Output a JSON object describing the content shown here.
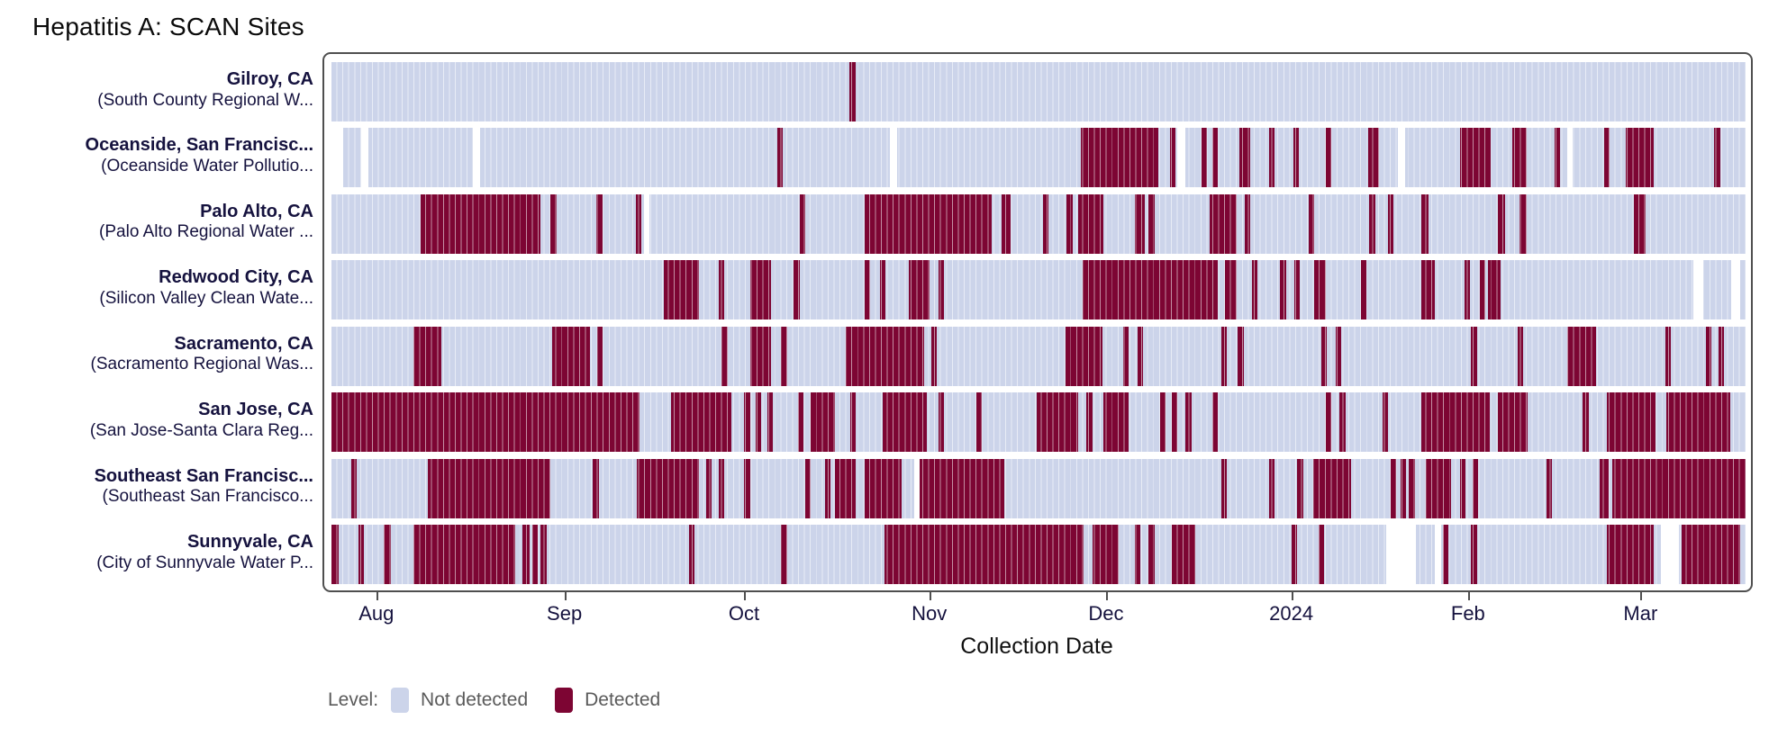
{
  "title": "Hepatitis A: SCAN Sites",
  "colors": {
    "not_detected": "#ccd4ea",
    "detected": "#7d0533",
    "gap": "#ffffff",
    "frame": "#4f4f4f",
    "label_text": "#15123e",
    "legend_text": "#5a5a5a"
  },
  "legend": {
    "title": "Level:",
    "items": [
      {
        "label": "Not detected",
        "color_key": "not_detected"
      },
      {
        "label": "Detected",
        "color_key": "detected"
      }
    ]
  },
  "chart_data": {
    "type": "heatmap",
    "title": "Hepatitis A: SCAN Sites",
    "xlabel": "Collection Date",
    "x_range_approx": [
      "2023-07-23",
      "2024-03-18"
    ],
    "x_ticks": [
      {
        "label": "Aug",
        "pos": 0.033
      },
      {
        "label": "Sep",
        "pos": 0.166
      },
      {
        "label": "Oct",
        "pos": 0.293
      },
      {
        "label": "Nov",
        "pos": 0.424
      },
      {
        "label": "Dec",
        "pos": 0.549
      },
      {
        "label": "2024",
        "pos": 0.68
      },
      {
        "label": "Feb",
        "pos": 0.805
      },
      {
        "label": "Mar",
        "pos": 0.927
      }
    ],
    "levels": [
      "Not detected",
      "Detected"
    ],
    "segment_note": "segments are [start_fraction, end_fraction, level] over the x range; level d=Detected, gap=no sample (white); background between segments = Not detected",
    "sites": [
      {
        "city": "Gilroy, CA",
        "facility": "(South County Regional W...",
        "segments": [
          [
            0.366,
            0.371,
            "d"
          ]
        ]
      },
      {
        "city": "Oceanside, San Francisc...",
        "facility": "(Oceanside Water Pollutio...",
        "segments": [
          [
            0,
            0.008,
            "gap"
          ],
          [
            0.021,
            0.026,
            "gap"
          ],
          [
            0.1,
            0.105,
            "gap"
          ],
          [
            0.315,
            0.319,
            "d"
          ],
          [
            0.395,
            0.4,
            "gap"
          ],
          [
            0.53,
            0.585,
            "d"
          ],
          [
            0.593,
            0.597,
            "d"
          ],
          [
            0.598,
            0.604,
            "gap"
          ],
          [
            0.615,
            0.619,
            "d"
          ],
          [
            0.623,
            0.627,
            "d"
          ],
          [
            0.642,
            0.65,
            "d"
          ],
          [
            0.663,
            0.667,
            "d"
          ],
          [
            0.68,
            0.684,
            "d"
          ],
          [
            0.703,
            0.707,
            "d"
          ],
          [
            0.733,
            0.741,
            "d"
          ],
          [
            0.754,
            0.759,
            "gap"
          ],
          [
            0.798,
            0.82,
            "d"
          ],
          [
            0.835,
            0.845,
            "d"
          ],
          [
            0.865,
            0.869,
            "d"
          ],
          [
            0.874,
            0.878,
            "gap"
          ],
          [
            0.9,
            0.904,
            "d"
          ],
          [
            0.915,
            0.935,
            "d"
          ],
          [
            0.978,
            0.982,
            "d"
          ]
        ]
      },
      {
        "city": "Palo Alto, CA",
        "facility": "(Palo Alto Regional Water ...",
        "segments": [
          [
            0.063,
            0.148,
            "d"
          ],
          [
            0.155,
            0.159,
            "d"
          ],
          [
            0.187,
            0.192,
            "d"
          ],
          [
            0.215,
            0.219,
            "d"
          ],
          [
            0.221,
            0.225,
            "gap"
          ],
          [
            0.331,
            0.335,
            "d"
          ],
          [
            0.377,
            0.467,
            "d"
          ],
          [
            0.474,
            0.48,
            "d"
          ],
          [
            0.503,
            0.507,
            "d"
          ],
          [
            0.52,
            0.524,
            "d"
          ],
          [
            0.528,
            0.546,
            "d"
          ],
          [
            0.568,
            0.575,
            "d"
          ],
          [
            0.578,
            0.582,
            "d"
          ],
          [
            0.621,
            0.64,
            "d"
          ],
          [
            0.646,
            0.65,
            "d"
          ],
          [
            0.691,
            0.695,
            "d"
          ],
          [
            0.734,
            0.738,
            "d"
          ],
          [
            0.747,
            0.751,
            "d"
          ],
          [
            0.771,
            0.776,
            "d"
          ],
          [
            0.825,
            0.83,
            "d"
          ],
          [
            0.84,
            0.845,
            "d"
          ],
          [
            0.921,
            0.929,
            "d"
          ]
        ]
      },
      {
        "city": "Redwood City, CA",
        "facility": "(Silicon Valley Clean Wate...",
        "segments": [
          [
            0.235,
            0.26,
            "d"
          ],
          [
            0.274,
            0.278,
            "d"
          ],
          [
            0.296,
            0.311,
            "d"
          ],
          [
            0.327,
            0.331,
            "d"
          ],
          [
            0.377,
            0.381,
            "d"
          ],
          [
            0.388,
            0.392,
            "d"
          ],
          [
            0.408,
            0.423,
            "d"
          ],
          [
            0.429,
            0.433,
            "d"
          ],
          [
            0.531,
            0.627,
            "d"
          ],
          [
            0.632,
            0.64,
            "d"
          ],
          [
            0.651,
            0.655,
            "d"
          ],
          [
            0.671,
            0.675,
            "d"
          ],
          [
            0.681,
            0.685,
            "d"
          ],
          [
            0.695,
            0.703,
            "d"
          ],
          [
            0.728,
            0.732,
            "d"
          ],
          [
            0.771,
            0.78,
            "d"
          ],
          [
            0.801,
            0.805,
            "d"
          ],
          [
            0.812,
            0.816,
            "d"
          ],
          [
            0.818,
            0.827,
            "d"
          ],
          [
            0.963,
            0.97,
            "gap"
          ],
          [
            0.99,
            0.996,
            "gap"
          ]
        ]
      },
      {
        "city": "Sacramento, CA",
        "facility": "(Sacramento Regional Was...",
        "segments": [
          [
            0.058,
            0.078,
            "d"
          ],
          [
            0.156,
            0.183,
            "d"
          ],
          [
            0.188,
            0.192,
            "d"
          ],
          [
            0.276,
            0.28,
            "d"
          ],
          [
            0.296,
            0.311,
            "d"
          ],
          [
            0.318,
            0.322,
            "d"
          ],
          [
            0.364,
            0.419,
            "d"
          ],
          [
            0.424,
            0.428,
            "d"
          ],
          [
            0.519,
            0.545,
            "d"
          ],
          [
            0.56,
            0.564,
            "d"
          ],
          [
            0.57,
            0.574,
            "d"
          ],
          [
            0.629,
            0.633,
            "d"
          ],
          [
            0.641,
            0.645,
            "d"
          ],
          [
            0.7,
            0.704,
            "d"
          ],
          [
            0.71,
            0.714,
            "d"
          ],
          [
            0.806,
            0.81,
            "d"
          ],
          [
            0.839,
            0.843,
            "d"
          ],
          [
            0.874,
            0.894,
            "d"
          ],
          [
            0.943,
            0.947,
            "d"
          ],
          [
            0.972,
            0.976,
            "d"
          ],
          [
            0.981,
            0.985,
            "d"
          ]
        ]
      },
      {
        "city": "San Jose, CA",
        "facility": "(San Jose-Santa Clara Reg...",
        "segments": [
          [
            0,
            0.218,
            "d"
          ],
          [
            0.24,
            0.283,
            "d"
          ],
          [
            0.292,
            0.296,
            "d"
          ],
          [
            0.3,
            0.304,
            "d"
          ],
          [
            0.308,
            0.312,
            "d"
          ],
          [
            0.33,
            0.334,
            "d"
          ],
          [
            0.339,
            0.356,
            "d"
          ],
          [
            0.367,
            0.371,
            "d"
          ],
          [
            0.39,
            0.421,
            "d"
          ],
          [
            0.429,
            0.433,
            "d"
          ],
          [
            0.456,
            0.46,
            "d"
          ],
          [
            0.499,
            0.528,
            "d"
          ],
          [
            0.534,
            0.538,
            "d"
          ],
          [
            0.546,
            0.564,
            "d"
          ],
          [
            0.586,
            0.59,
            "d"
          ],
          [
            0.594,
            0.598,
            "d"
          ],
          [
            0.604,
            0.608,
            "d"
          ],
          [
            0.623,
            0.627,
            "d"
          ],
          [
            0.703,
            0.707,
            "d"
          ],
          [
            0.713,
            0.717,
            "d"
          ],
          [
            0.743,
            0.747,
            "d"
          ],
          [
            0.771,
            0.819,
            "d"
          ],
          [
            0.825,
            0.846,
            "d"
          ],
          [
            0.885,
            0.889,
            "d"
          ],
          [
            0.902,
            0.936,
            "d"
          ],
          [
            0.944,
            0.989,
            "d"
          ]
        ]
      },
      {
        "city": "Southeast San Francisc...",
        "facility": "(Southeast San Francisco...",
        "segments": [
          [
            0.014,
            0.018,
            "d"
          ],
          [
            0.068,
            0.155,
            "d"
          ],
          [
            0.185,
            0.189,
            "d"
          ],
          [
            0.216,
            0.26,
            "d"
          ],
          [
            0.265,
            0.269,
            "d"
          ],
          [
            0.274,
            0.278,
            "d"
          ],
          [
            0.292,
            0.296,
            "d"
          ],
          [
            0.335,
            0.339,
            "d"
          ],
          [
            0.349,
            0.353,
            "d"
          ],
          [
            0.356,
            0.371,
            "d"
          ],
          [
            0.377,
            0.403,
            "d"
          ],
          [
            0.412,
            0.416,
            "gap"
          ],
          [
            0.416,
            0.476,
            "d"
          ],
          [
            0.629,
            0.633,
            "d"
          ],
          [
            0.663,
            0.667,
            "d"
          ],
          [
            0.683,
            0.687,
            "d"
          ],
          [
            0.694,
            0.721,
            "d"
          ],
          [
            0.749,
            0.753,
            "d"
          ],
          [
            0.756,
            0.76,
            "d"
          ],
          [
            0.762,
            0.766,
            "d"
          ],
          [
            0.774,
            0.792,
            "d"
          ],
          [
            0.798,
            0.802,
            "d"
          ],
          [
            0.807,
            0.811,
            "d"
          ],
          [
            0.859,
            0.863,
            "d"
          ],
          [
            0.897,
            0.903,
            "d"
          ],
          [
            0.906,
            1,
            "d"
          ]
        ]
      },
      {
        "city": "Sunnyvale, CA",
        "facility": "(City of Sunnyvale Water P...",
        "segments": [
          [
            0,
            0.005,
            "d"
          ],
          [
            0.019,
            0.023,
            "d"
          ],
          [
            0.037,
            0.042,
            "d"
          ],
          [
            0.058,
            0.13,
            "d"
          ],
          [
            0.135,
            0.14,
            "d"
          ],
          [
            0.142,
            0.146,
            "d"
          ],
          [
            0.148,
            0.152,
            "d"
          ],
          [
            0.253,
            0.257,
            "d"
          ],
          [
            0.318,
            0.322,
            "d"
          ],
          [
            0.391,
            0.532,
            "d"
          ],
          [
            0.538,
            0.557,
            "d"
          ],
          [
            0.568,
            0.572,
            "d"
          ],
          [
            0.578,
            0.582,
            "d"
          ],
          [
            0.594,
            0.611,
            "d"
          ],
          [
            0.679,
            0.683,
            "d"
          ],
          [
            0.698,
            0.702,
            "d"
          ],
          [
            0.746,
            0.767,
            "gap"
          ],
          [
            0.78,
            0.785,
            "gap"
          ],
          [
            0.786,
            0.79,
            "d"
          ],
          [
            0.806,
            0.81,
            "d"
          ],
          [
            0.902,
            0.935,
            "d"
          ],
          [
            0.94,
            0.953,
            "gap"
          ],
          [
            0.955,
            0.996,
            "d"
          ]
        ]
      }
    ]
  }
}
